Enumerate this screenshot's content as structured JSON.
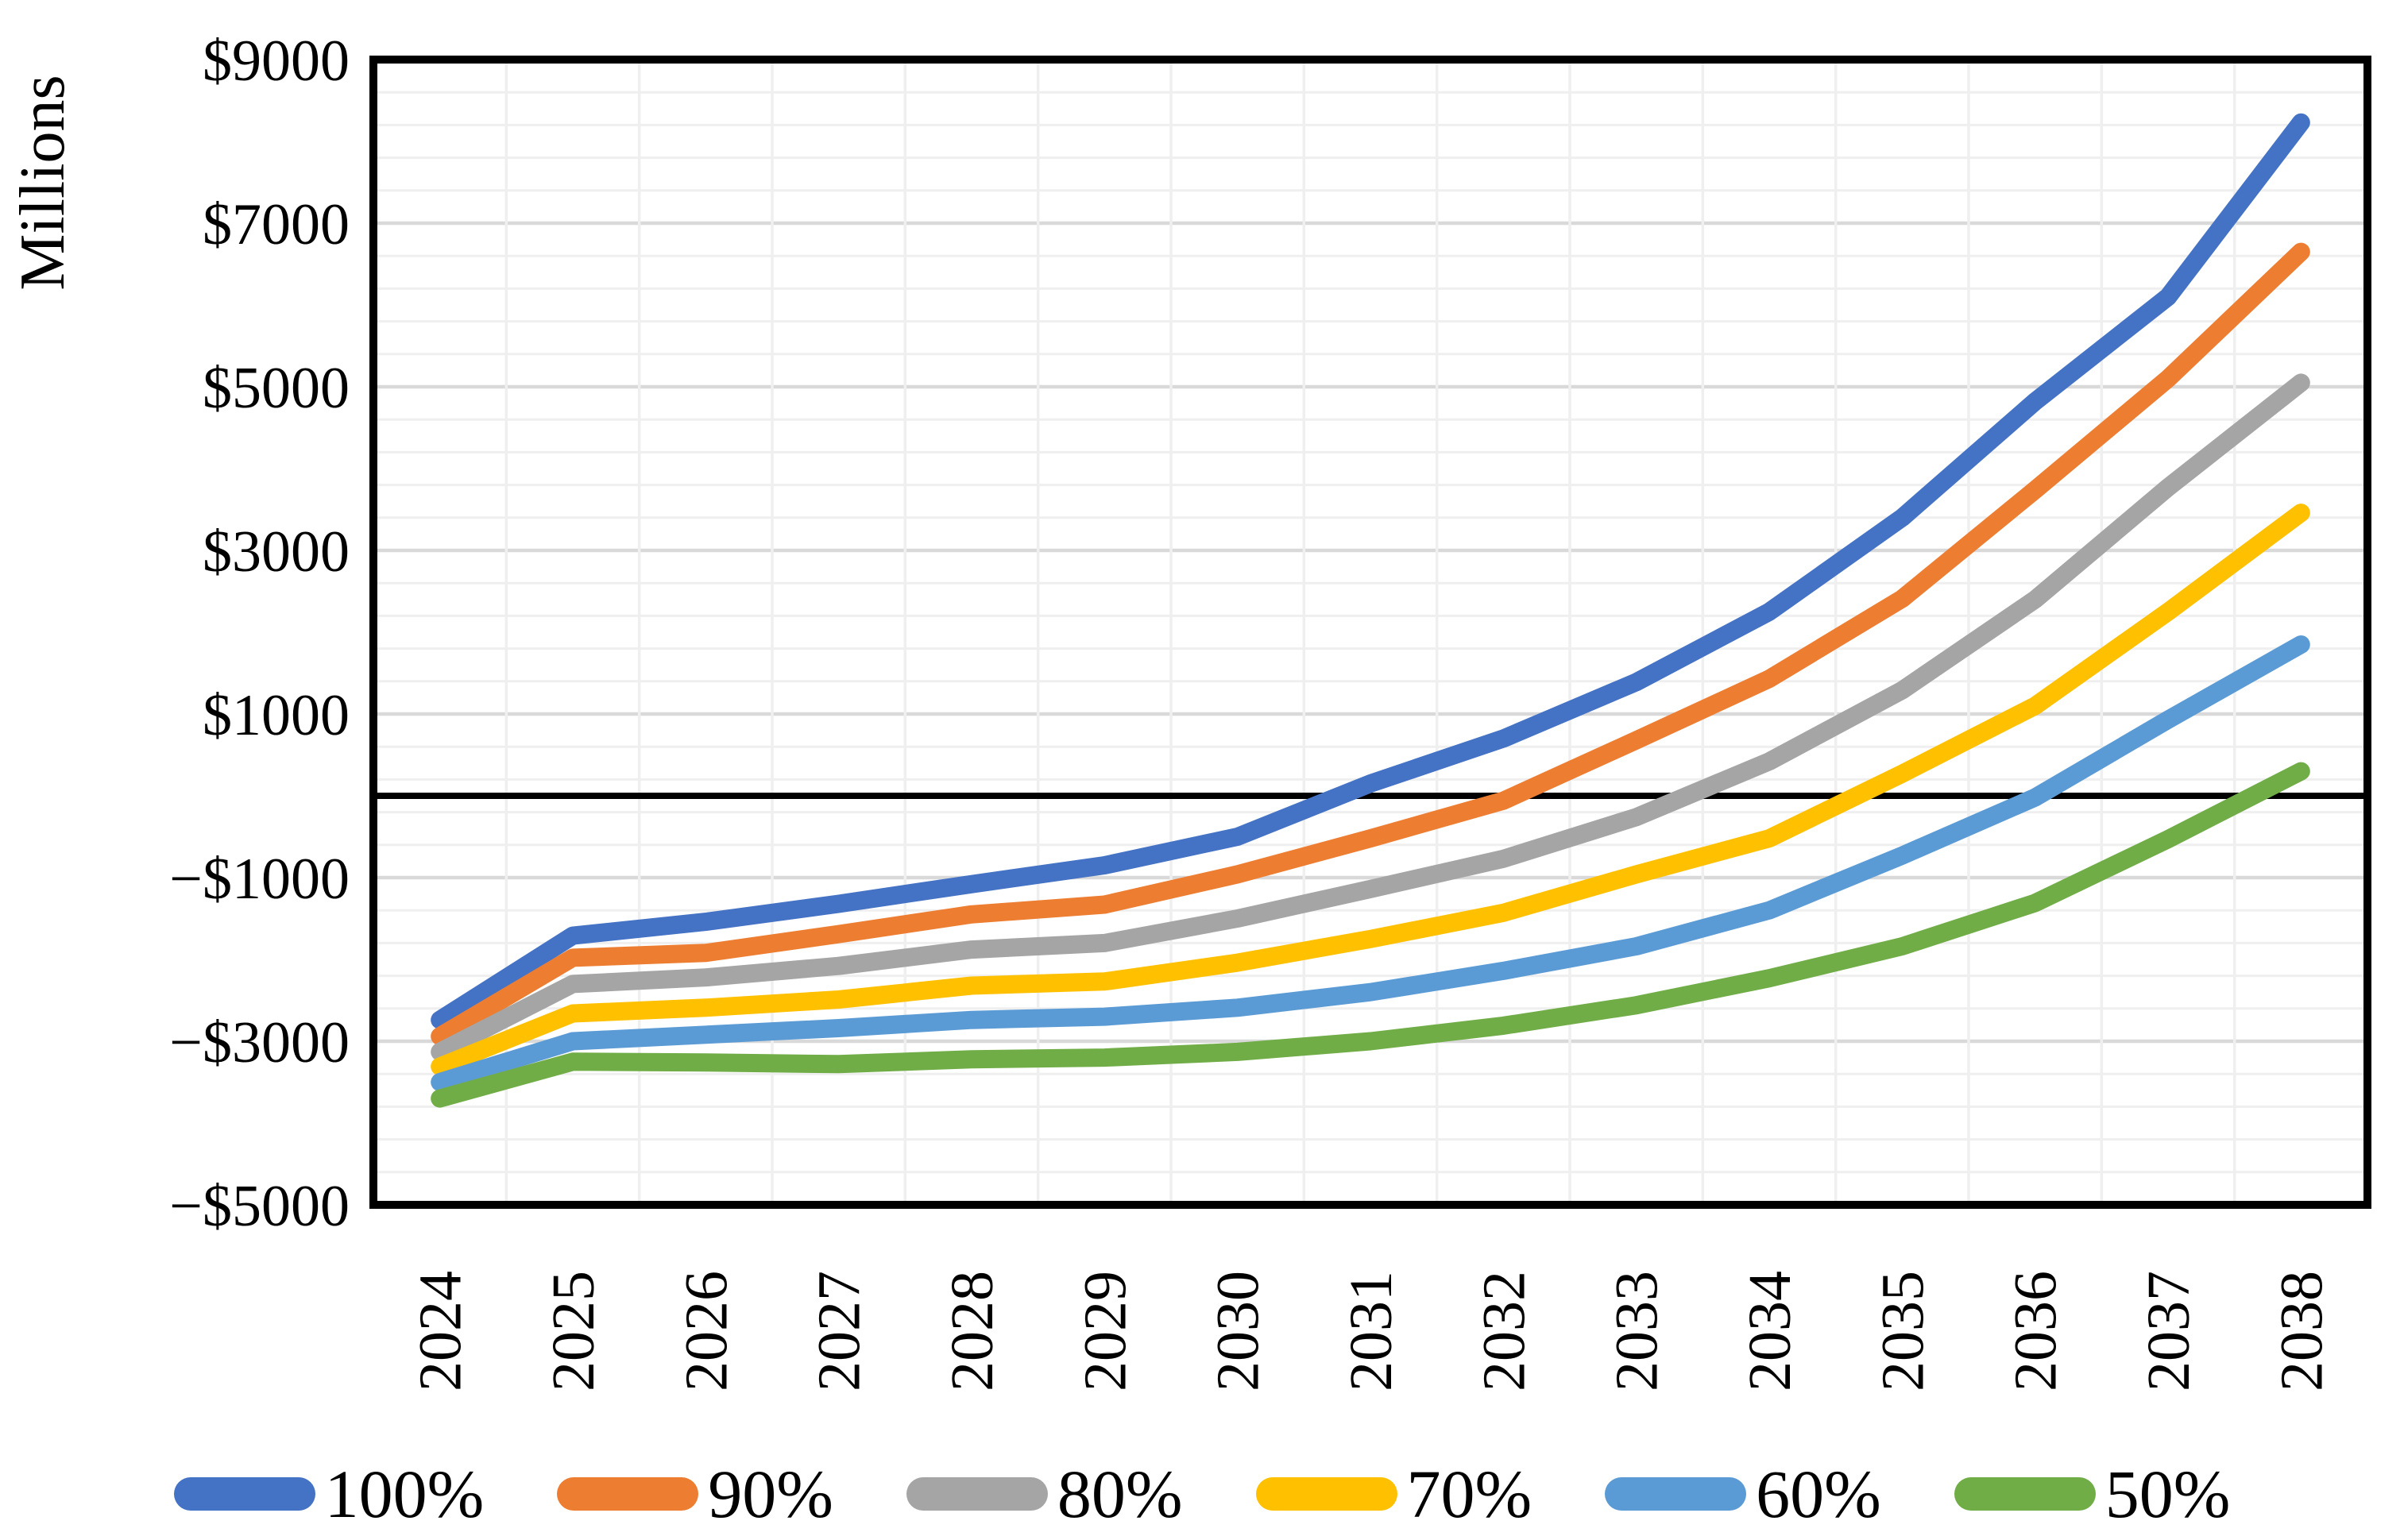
{
  "chart_data": {
    "type": "line",
    "title": "",
    "y_axis_title": "Millions",
    "xlabel": "",
    "ylabel": "Millions",
    "x": [
      "2024",
      "2025",
      "2026",
      "2027",
      "2028",
      "2029",
      "2030",
      "2031",
      "2032",
      "2033",
      "2034",
      "2035",
      "2036",
      "2037",
      "2038"
    ],
    "y_ticks": [
      {
        "label": "$9000",
        "value": 9000
      },
      {
        "label": "$7000",
        "value": 7000
      },
      {
        "label": "$5000",
        "value": 5000
      },
      {
        "label": "$3000",
        "value": 3000
      },
      {
        "label": "$1000",
        "value": 1000
      },
      {
        "label": "−$1000",
        "value": -1000
      },
      {
        "label": "−$3000",
        "value": -3000
      },
      {
        "label": "−$5000",
        "value": -5000
      }
    ],
    "ylim": [
      -5000,
      9000
    ],
    "major_unit": 2000,
    "minor_unit": 400,
    "grid": true,
    "legend_position": "bottom",
    "series": [
      {
        "name": "100%",
        "color": "#4472C4",
        "values": [
          -2740,
          -1710,
          -1540,
          -1320,
          -1080,
          -850,
          -500,
          150,
          700,
          1390,
          2250,
          3400,
          4820,
          6100,
          8230
        ]
      },
      {
        "name": "90%",
        "color": "#ED7D31",
        "values": [
          -2940,
          -1980,
          -1920,
          -1690,
          -1450,
          -1330,
          -960,
          -520,
          -60,
          680,
          1430,
          2410,
          3740,
          5100,
          6650
        ]
      },
      {
        "name": "80%",
        "color": "#A5A5A5",
        "values": [
          -3130,
          -2300,
          -2220,
          -2080,
          -1880,
          -1800,
          -1500,
          -1140,
          -770,
          -260,
          420,
          1290,
          2400,
          3770,
          5050
        ]
      },
      {
        "name": "70%",
        "color": "#FFC000",
        "values": [
          -3310,
          -2660,
          -2590,
          -2490,
          -2320,
          -2270,
          -2040,
          -1750,
          -1430,
          -960,
          -520,
          270,
          1100,
          2250,
          3460
        ]
      },
      {
        "name": "60%",
        "color": "#5B9BD5",
        "values": [
          -3500,
          -3000,
          -2920,
          -2840,
          -2740,
          -2700,
          -2590,
          -2400,
          -2140,
          -1840,
          -1400,
          -730,
          -20,
          930,
          1850
        ]
      },
      {
        "name": "50%",
        "color": "#70AD47",
        "values": [
          -3700,
          -3250,
          -3260,
          -3280,
          -3220,
          -3200,
          -3130,
          -3000,
          -2810,
          -2560,
          -2230,
          -1840,
          -1310,
          -530,
          300
        ]
      }
    ],
    "colors": {
      "grid_minor": "#EFEFEF",
      "grid_major": "#D9D9D9",
      "axis_line": "#000000",
      "border": "#000000",
      "background": "#FFFFFF"
    }
  }
}
